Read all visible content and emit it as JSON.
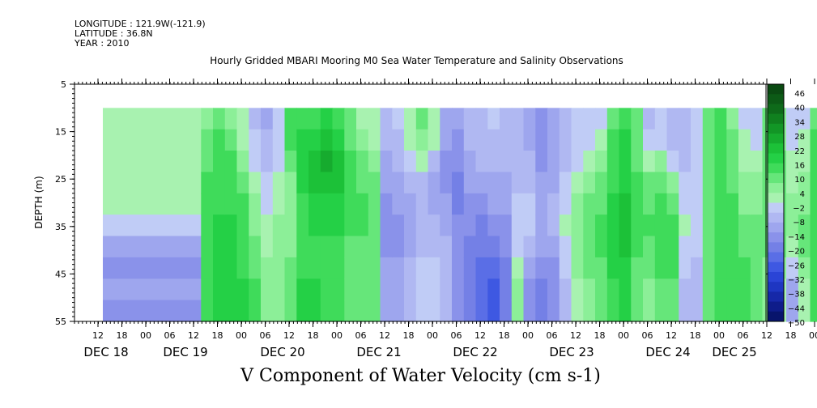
{
  "header": {
    "longitude": "LONGITUDE : 121.9W(-121.9)",
    "latitude": "LATITUDE : 36.8N",
    "year": "YEAR : 2010"
  },
  "chart_data": {
    "type": "heatmap",
    "title": "Hourly Gridded MBARI Mooring M0 Sea Water Temperature and Salinity Observations",
    "xlabel": "V Component of Water Velocity (cm s-1)",
    "ylabel": "DEPTH (m)",
    "ylim": [
      5,
      55
    ],
    "y_inverted": true,
    "y_ticks": [
      5,
      15,
      25,
      35,
      45,
      55
    ],
    "data_depth_range": [
      10,
      55
    ],
    "x_hour_ticks": [
      "12",
      "18",
      "00",
      "06",
      "12",
      "18",
      "00",
      "06",
      "12",
      "18",
      "00",
      "06",
      "12",
      "18",
      "00",
      "06",
      "12",
      "18",
      "00",
      "06",
      "12",
      "18",
      "00",
      "06",
      "12",
      "18",
      "00",
      "06",
      "12",
      "18",
      "00",
      "06"
    ],
    "x_day_labels": [
      "DEC 18",
      "DEC 19",
      "DEC 20",
      "DEC 21",
      "DEC 22",
      "DEC 23",
      "DEC 24",
      "DEC 25"
    ],
    "colorbar": {
      "tick_labels": [
        "46",
        "40",
        "34",
        "28",
        "22",
        "16",
        "10",
        "4",
        "−2",
        "−8",
        "−14",
        "−20",
        "−26",
        "−32",
        "−38",
        "−44",
        "−50"
      ],
      "colors": [
        "#0a4a12",
        "#0c5a16",
        "#0e6a1a",
        "#10801f",
        "#129626",
        "#16ab2e",
        "#1cc138",
        "#24d046",
        "#3fdb5a",
        "#66e67a",
        "#8cef98",
        "#a8f2b0",
        "#c0ccf6",
        "#b0b8f2",
        "#9ea6ee",
        "#8a92ea",
        "#7480e6",
        "#5a6ee6",
        "#3e58e2",
        "#2a44d6",
        "#1e36c2",
        "#1628a8",
        "#0e1c8a",
        "#08146c"
      ]
    },
    "columns": [
      {
        "day": "DEC 18",
        "hour": 13,
        "values": [
          2,
          3,
          2,
          1,
          0,
          -4,
          -10,
          -14,
          -12,
          -16
        ]
      },
      {
        "day": "DEC 18",
        "hour": 16,
        "values": [
          6,
          8,
          10,
          12,
          12,
          14,
          14,
          14,
          16,
          16
        ]
      },
      {
        "day": "DEC 18",
        "hour": 19,
        "values": [
          10,
          12,
          14,
          16,
          16,
          18,
          18,
          18,
          20,
          20
        ]
      },
      {
        "day": "DEC 18",
        "hour": 22,
        "values": [
          4,
          8,
          12,
          14,
          16,
          18,
          18,
          20,
          20,
          20
        ]
      },
      {
        "day": "DEC 19",
        "hour": 1,
        "values": [
          2,
          2,
          6,
          10,
          12,
          14,
          16,
          16,
          18,
          18
        ]
      },
      {
        "day": "DEC 19",
        "hour": 4,
        "values": [
          -6,
          -4,
          -2,
          2,
          4,
          6,
          8,
          10,
          12,
          12
        ]
      },
      {
        "day": "DEC 19",
        "hour": 7,
        "values": [
          -10,
          -8,
          -6,
          -4,
          -2,
          0,
          2,
          4,
          6,
          6
        ]
      },
      {
        "day": "DEC 19",
        "hour": 10,
        "values": [
          -4,
          -4,
          -2,
          0,
          2,
          4,
          4,
          6,
          6,
          6
        ]
      },
      {
        "day": "DEC 19",
        "hour": 13,
        "values": [
          12,
          12,
          10,
          6,
          4,
          4,
          6,
          8,
          10,
          10
        ]
      },
      {
        "day": "DEC 19",
        "hour": 16,
        "values": [
          14,
          18,
          20,
          18,
          16,
          14,
          14,
          16,
          18,
          18
        ]
      },
      {
        "day": "DEC 19",
        "hour": 19,
        "values": [
          16,
          20,
          22,
          22,
          20,
          18,
          16,
          16,
          18,
          18
        ]
      },
      {
        "day": "DEC 19",
        "hour": 22,
        "values": [
          20,
          24,
          26,
          24,
          20,
          18,
          16,
          16,
          16,
          16
        ]
      },
      {
        "day": "DEC 20",
        "hour": 1,
        "values": [
          16,
          20,
          22,
          22,
          20,
          18,
          16,
          14,
          16,
          16
        ]
      },
      {
        "day": "DEC 20",
        "hour": 4,
        "values": [
          8,
          10,
          12,
          14,
          14,
          12,
          10,
          10,
          10,
          10
        ]
      },
      {
        "day": "DEC 20",
        "hour": 7,
        "values": [
          2,
          4,
          8,
          10,
          12,
          12,
          10,
          10,
          10,
          10
        ]
      },
      {
        "day": "DEC 20",
        "hour": 10,
        "values": [
          2,
          2,
          6,
          8,
          10,
          10,
          10,
          8,
          8,
          8
        ]
      },
      {
        "day": "DEC 20",
        "hour": 13,
        "values": [
          -6,
          -8,
          -10,
          -12,
          -14,
          -16,
          -14,
          -12,
          -12,
          -12
        ]
      },
      {
        "day": "DEC 20",
        "hour": 16,
        "values": [
          -4,
          -6,
          -8,
          -10,
          -12,
          -14,
          -14,
          -12,
          -12,
          -12
        ]
      },
      {
        "day": "DEC 20",
        "hour": 19,
        "values": [
          2,
          0,
          -4,
          -8,
          -10,
          -10,
          -10,
          -8,
          -6,
          -6
        ]
      },
      {
        "day": "DEC 20",
        "hour": 22,
        "values": [
          8,
          6,
          0,
          -6,
          -8,
          -8,
          -6,
          -4,
          -2,
          -2
        ]
      },
      {
        "day": "DEC 21",
        "hour": 1,
        "values": [
          2,
          0,
          -6,
          -10,
          -10,
          -8,
          -6,
          -4,
          -2,
          -2
        ]
      },
      {
        "day": "DEC 21",
        "hour": 4,
        "values": [
          -10,
          -12,
          -14,
          -14,
          -12,
          -10,
          -8,
          -8,
          -6,
          -6
        ]
      },
      {
        "day": "DEC 21",
        "hour": 7,
        "values": [
          -12,
          -14,
          -16,
          -18,
          -18,
          -16,
          -14,
          -14,
          -14,
          -14
        ]
      },
      {
        "day": "DEC 21",
        "hour": 10,
        "values": [
          -8,
          -8,
          -10,
          -12,
          -14,
          -16,
          -18,
          -20,
          -20,
          -20
        ]
      },
      {
        "day": "DEC 21",
        "hour": 13,
        "values": [
          -6,
          -6,
          -8,
          -10,
          -14,
          -18,
          -20,
          -22,
          -24,
          -24
        ]
      },
      {
        "day": "DEC 21",
        "hour": 16,
        "values": [
          -4,
          -6,
          -8,
          -10,
          -12,
          -16,
          -20,
          -24,
          -26,
          -26
        ]
      },
      {
        "day": "DEC 21",
        "hour": 19,
        "values": [
          -6,
          -6,
          -8,
          -10,
          -12,
          -14,
          -16,
          -18,
          -20,
          -20
        ]
      },
      {
        "day": "DEC 21",
        "hour": 22,
        "values": [
          -8,
          -8,
          -6,
          -6,
          -4,
          -4,
          -2,
          2,
          4,
          4
        ]
      },
      {
        "day": "DEC 22",
        "hour": 1,
        "values": [
          -10,
          -10,
          -8,
          -6,
          -4,
          -4,
          -6,
          -10,
          -14,
          -14
        ]
      },
      {
        "day": "DEC 22",
        "hour": 4,
        "values": [
          -14,
          -14,
          -14,
          -12,
          -10,
          -10,
          -12,
          -16,
          -20,
          -20
        ]
      },
      {
        "day": "DEC 22",
        "hour": 7,
        "values": [
          -12,
          -12,
          -12,
          -10,
          -8,
          -8,
          -10,
          -14,
          -16,
          -16
        ]
      },
      {
        "day": "DEC 22",
        "hour": 10,
        "values": [
          -8,
          -8,
          -6,
          -4,
          -2,
          0,
          -2,
          -4,
          -6,
          -6
        ]
      },
      {
        "day": "DEC 22",
        "hour": 13,
        "values": [
          -4,
          -4,
          -2,
          2,
          4,
          6,
          6,
          4,
          2,
          2
        ]
      },
      {
        "day": "DEC 22",
        "hour": 16,
        "values": [
          -4,
          -4,
          0,
          4,
          8,
          10,
          10,
          8,
          6,
          6
        ]
      },
      {
        "day": "DEC 22",
        "hour": 19,
        "values": [
          -2,
          0,
          4,
          8,
          10,
          12,
          12,
          10,
          8,
          8
        ]
      },
      {
        "day": "DEC 22",
        "hour": 22,
        "values": [
          10,
          12,
          14,
          16,
          18,
          18,
          18,
          18,
          16,
          16
        ]
      },
      {
        "day": "DEC 23",
        "hour": 1,
        "values": [
          16,
          18,
          20,
          20,
          22,
          22,
          22,
          20,
          18,
          18
        ]
      },
      {
        "day": "DEC 23",
        "hour": 4,
        "values": [
          8,
          10,
          10,
          12,
          14,
          14,
          12,
          10,
          8,
          8
        ]
      },
      {
        "day": "DEC 23",
        "hour": 7,
        "values": [
          -6,
          -4,
          2,
          8,
          10,
          12,
          10,
          8,
          6,
          6
        ]
      },
      {
        "day": "DEC 23",
        "hour": 10,
        "values": [
          -4,
          -2,
          4,
          10,
          14,
          16,
          14,
          12,
          10,
          10
        ]
      },
      {
        "day": "DEC 23",
        "hour": 13,
        "values": [
          -8,
          -6,
          -2,
          6,
          10,
          14,
          14,
          12,
          10,
          10
        ]
      },
      {
        "day": "DEC 23",
        "hour": 16,
        "values": [
          -8,
          -8,
          -6,
          -4,
          -2,
          0,
          -2,
          -4,
          -6,
          -6
        ]
      },
      {
        "day": "DEC 23",
        "hour": 19,
        "values": [
          -4,
          -4,
          -4,
          -4,
          -4,
          -4,
          -4,
          -6,
          -8,
          -8
        ]
      },
      {
        "day": "DEC 23",
        "hour": 22,
        "values": [
          10,
          10,
          8,
          8,
          8,
          8,
          8,
          10,
          10,
          10
        ]
      },
      {
        "day": "DEC 24",
        "hour": 1,
        "values": [
          14,
          14,
          12,
          12,
          12,
          14,
          14,
          16,
          16,
          16
        ]
      },
      {
        "day": "DEC 24",
        "hour": 4,
        "values": [
          6,
          8,
          10,
          10,
          12,
          12,
          14,
          16,
          16,
          16
        ]
      },
      {
        "day": "DEC 24",
        "hour": 7,
        "values": [
          -2,
          0,
          2,
          4,
          6,
          8,
          10,
          12,
          14,
          14
        ]
      },
      {
        "day": "DEC 24",
        "hour": 10,
        "values": [
          -4,
          -2,
          2,
          4,
          6,
          8,
          10,
          10,
          10,
          10
        ]
      },
      {
        "day": "DEC 24",
        "hour": 13,
        "values": [
          10,
          10,
          10,
          10,
          10,
          10,
          8,
          6,
          4,
          4
        ]
      },
      {
        "day": "DEC 24",
        "hour": 16,
        "values": [
          4,
          6,
          8,
          10,
          10,
          10,
          8,
          4,
          0,
          0
        ]
      },
      {
        "day": "DEC 24",
        "hour": 19,
        "values": [
          -2,
          -2,
          0,
          2,
          4,
          4,
          2,
          -4,
          -10,
          -10
        ]
      },
      {
        "day": "DEC 24",
        "hour": 22,
        "values": [
          -2,
          0,
          2,
          4,
          6,
          8,
          8,
          4,
          2,
          2
        ]
      },
      {
        "day": "DEC 25",
        "hour": 1,
        "values": [
          10,
          12,
          14,
          14,
          14,
          14,
          12,
          12,
          12,
          12
        ]
      },
      {
        "day": "DEC 25",
        "hour": 4,
        "values": [
          14,
          16,
          18,
          18,
          16,
          16,
          14,
          14,
          14,
          14
        ]
      },
      {
        "day": "DEC 25",
        "hour": 7,
        "values": [
          8,
          10,
          12,
          12,
          10,
          10,
          10,
          10,
          8,
          8
        ]
      },
      {
        "day": "DEC 25",
        "hour": 9,
        "values": [
          4,
          4,
          6,
          6,
          6,
          8,
          8,
          8,
          6,
          4
        ]
      }
    ]
  }
}
